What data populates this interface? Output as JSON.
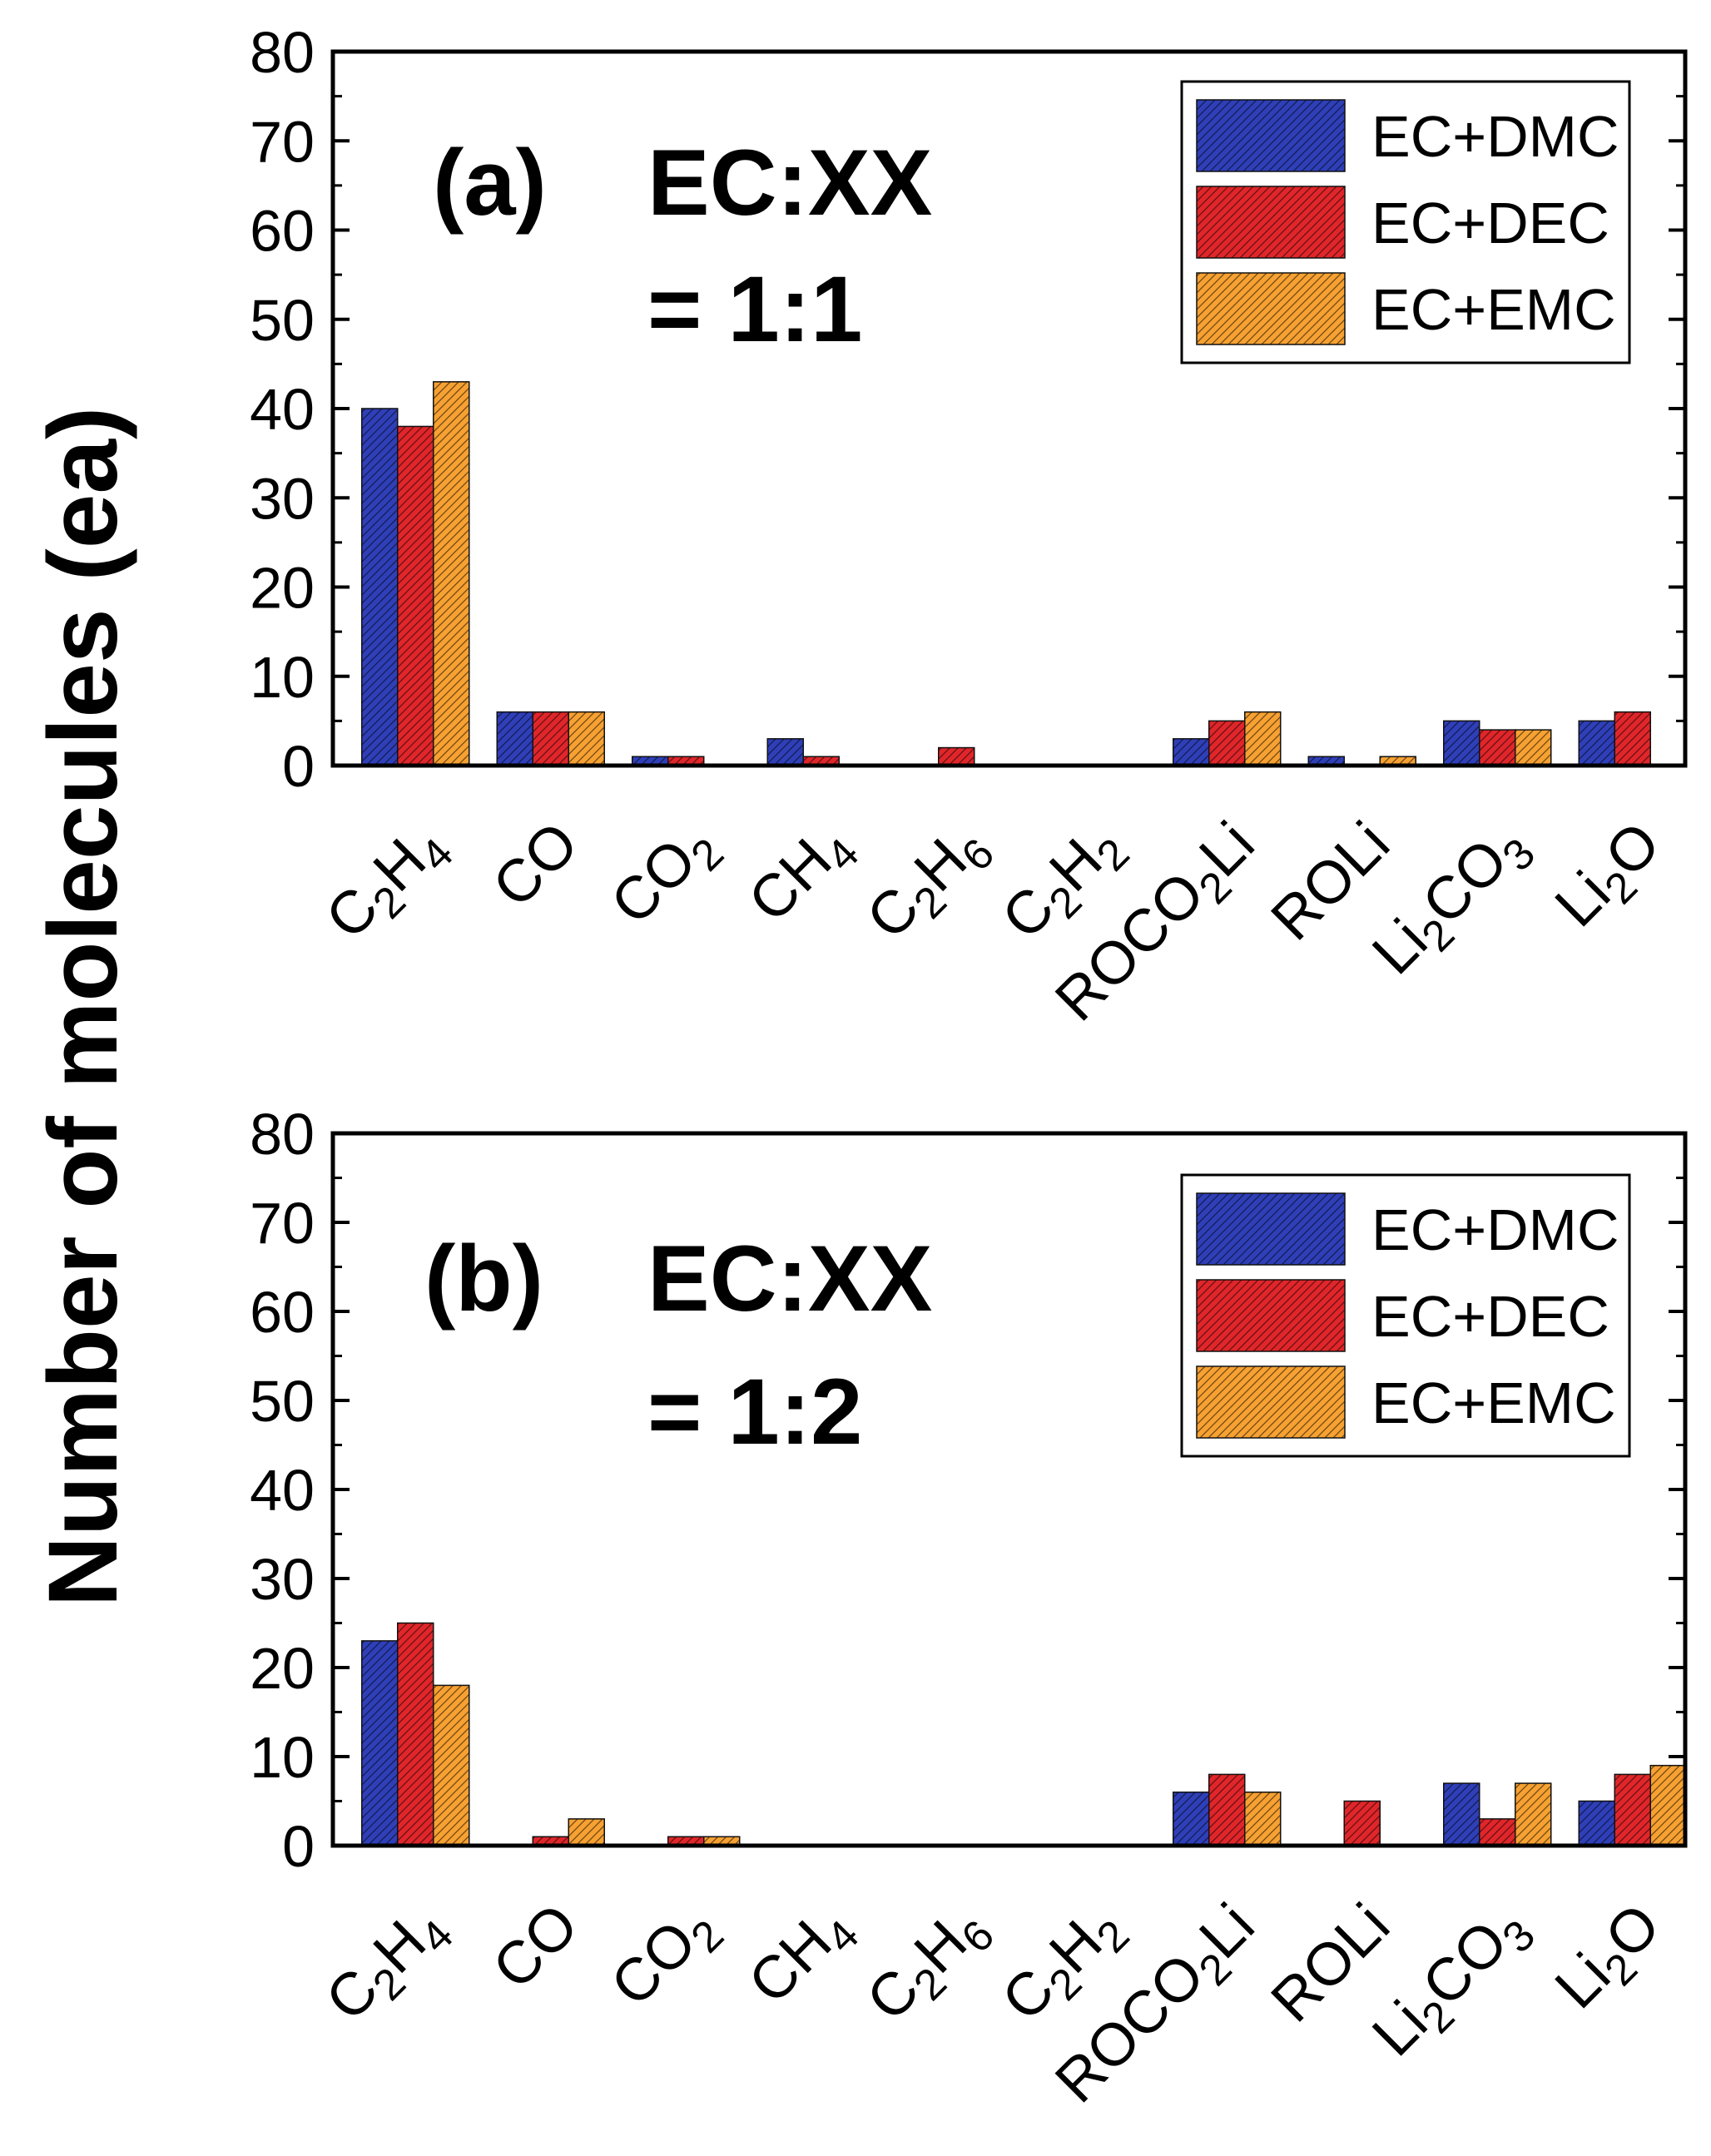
{
  "ylabel": "Number of molecules (ea)",
  "colors": {
    "EC+DMC": "#2e3fb8",
    "EC+DEC": "#e0262a",
    "EC+EMC": "#f7a132",
    "hatch": "#000000"
  },
  "categories": [
    {
      "base": "C",
      "sub": "2",
      "rest": "H",
      "sub2": "4"
    },
    {
      "base": "CO",
      "sub": "",
      "rest": "",
      "sub2": ""
    },
    {
      "base": "CO",
      "sub": "2",
      "rest": "",
      "sub2": ""
    },
    {
      "base": "CH",
      "sub": "4",
      "rest": "",
      "sub2": ""
    },
    {
      "base": "C",
      "sub": "2",
      "rest": "H",
      "sub2": "6"
    },
    {
      "base": "C",
      "sub": "2",
      "rest": "H",
      "sub2": "2"
    },
    {
      "base": "ROCO",
      "sub": "2",
      "rest": "Li",
      "sub2": ""
    },
    {
      "base": "ROLi",
      "sub": "",
      "rest": "",
      "sub2": ""
    },
    {
      "base": "Li",
      "sub": "2",
      "rest": "CO",
      "sub2": "3"
    },
    {
      "base": "Li",
      "sub": "2",
      "rest": "O",
      "sub2": ""
    }
  ],
  "chart_data": [
    {
      "type": "bar",
      "panel_label": "(a)",
      "annotation_line1": "EC:XX",
      "annotation_line2": "= 1:1",
      "categories": [
        "C2H4",
        "CO",
        "CO2",
        "CH4",
        "C2H6",
        "C2H2",
        "ROCO2Li",
        "ROLi",
        "Li2CO3",
        "Li2O"
      ],
      "yticks": [
        "0",
        "10",
        "20",
        "30",
        "40",
        "50",
        "60",
        "70",
        "80"
      ],
      "ylim": [
        0,
        80
      ],
      "legend_position": "top-right",
      "series": [
        {
          "name": "EC+DMC",
          "values": [
            40,
            6,
            1,
            3,
            0,
            0,
            3,
            1,
            5,
            5
          ]
        },
        {
          "name": "EC+DEC",
          "values": [
            38,
            6,
            1,
            1,
            2,
            0,
            5,
            0,
            4,
            6
          ]
        },
        {
          "name": "EC+EMC",
          "values": [
            43,
            6,
            0,
            0,
            0,
            0,
            6,
            1,
            4,
            0
          ]
        }
      ]
    },
    {
      "type": "bar",
      "panel_label": "(b)",
      "annotation_line1": "EC:XX",
      "annotation_line2": "= 1:2",
      "categories": [
        "C2H4",
        "CO",
        "CO2",
        "CH4",
        "C2H6",
        "C2H2",
        "ROCO2Li",
        "ROLi",
        "Li2CO3",
        "Li2O"
      ],
      "yticks": [
        "0",
        "10",
        "20",
        "30",
        "40",
        "50",
        "60",
        "70",
        "80"
      ],
      "ylim": [
        0,
        80
      ],
      "legend_position": "top-right",
      "series": [
        {
          "name": "EC+DMC",
          "values": [
            23,
            0,
            0,
            0,
            0,
            0,
            6,
            0,
            7,
            5
          ]
        },
        {
          "name": "EC+DEC",
          "values": [
            25,
            1,
            1,
            0,
            0,
            0,
            8,
            5,
            3,
            8
          ]
        },
        {
          "name": "EC+EMC",
          "values": [
            18,
            3,
            1,
            0,
            0,
            0,
            6,
            0,
            7,
            9
          ]
        }
      ]
    }
  ]
}
